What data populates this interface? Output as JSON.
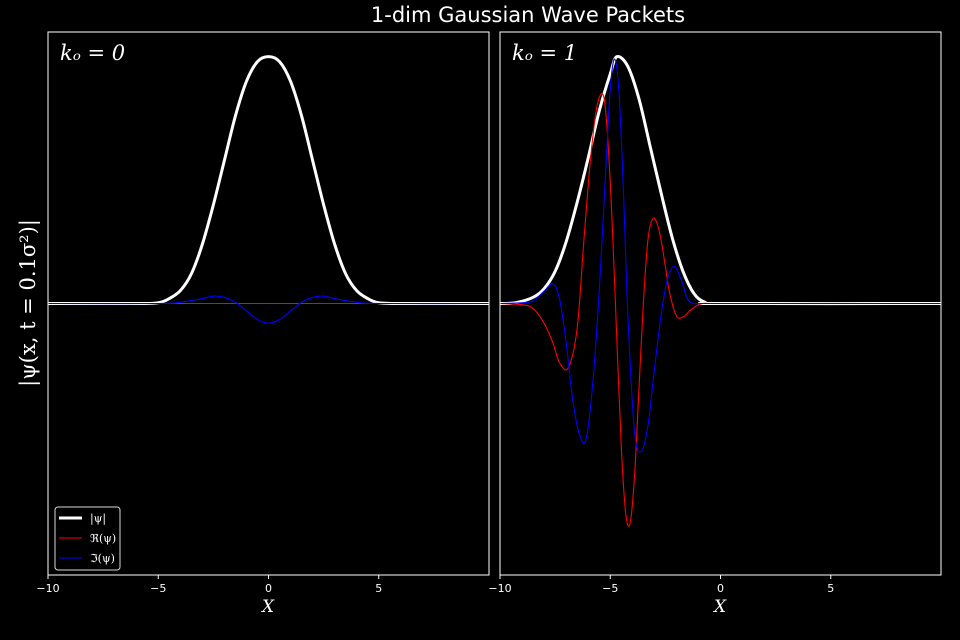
{
  "chart_data": {
    "type": "line",
    "title": "1-dim Gaussian Wave Packets",
    "ylabel": "|ψ(x, t = 0.1σ²)|",
    "xlabel": "X",
    "background": "#000000",
    "colors": {
      "abs": "#ffffff",
      "real": "#ff0000",
      "imag": "#0000ff"
    },
    "legend": {
      "placement": "lower-left",
      "entries": [
        {
          "key": "abs",
          "label": "|ψ|"
        },
        {
          "key": "real",
          "label": "ℜ(ψ)"
        },
        {
          "key": "imag",
          "label": "ℑ(ψ)"
        }
      ]
    },
    "grid": false,
    "panels": [
      {
        "label": "kₒ = 0",
        "xlim": [
          -10,
          10
        ],
        "ylim": [
          -1.1,
          1.1
        ],
        "xticks": [
          -10,
          -5,
          0,
          5
        ],
        "yticks_visible": false,
        "legend": true,
        "series": [
          {
            "key": "abs",
            "name": "|ψ|",
            "x": [
              -10,
              -6,
              -5,
              -4.5,
              -4,
              -3.5,
              -3,
              -2.5,
              -2,
              -1.5,
              -1,
              -0.5,
              0,
              0.5,
              1,
              1.5,
              2,
              2.5,
              3,
              3.5,
              4,
              4.5,
              5,
              6,
              10
            ],
            "y": [
              0,
              0,
              0.003,
              0.02,
              0.052,
              0.12,
              0.24,
              0.4,
              0.58,
              0.76,
              0.9,
              0.98,
              1.0,
              0.98,
              0.9,
              0.76,
              0.58,
              0.4,
              0.24,
              0.12,
              0.052,
              0.02,
              0.003,
              0,
              0
            ]
          },
          {
            "key": "real",
            "name": "ℜ(ψ)",
            "x": [
              -10,
              10
            ],
            "y": [
              0,
              0
            ]
          },
          {
            "key": "imag",
            "name": "ℑ(ψ)",
            "x": [
              -10,
              -5,
              -4,
              -3,
              -2.5,
              -2,
              -1.5,
              -1,
              -0.5,
              0,
              0.5,
              1,
              1.5,
              2,
              2.5,
              3,
              4,
              5,
              10
            ],
            "y": [
              0,
              0,
              0.005,
              0.02,
              0.03,
              0.025,
              0.005,
              -0.03,
              -0.065,
              -0.08,
              -0.065,
              -0.03,
              0.005,
              0.025,
              0.03,
              0.02,
              0.005,
              0,
              0
            ]
          }
        ]
      },
      {
        "label": "kₒ = 1",
        "xlim": [
          -10,
          10
        ],
        "ylim": [
          -1.1,
          1.1
        ],
        "xticks": [
          -10,
          -5,
          0,
          5
        ],
        "yticks_visible": false,
        "legend": false,
        "series": [
          {
            "key": "abs",
            "name": "|ψ|",
            "x": [
              -10,
              -9.3,
              -8.5,
              -8,
              -7.5,
              -7,
              -6.5,
              -6,
              -5.5,
              -5,
              -4.7,
              -4.2,
              -3.7,
              -3.2,
              -2.7,
              -2.2,
              -1.7,
              -1.2,
              -0.7,
              0,
              10
            ],
            "y": [
              0,
              0.003,
              0.025,
              0.06,
              0.13,
              0.25,
              0.41,
              0.59,
              0.78,
              0.93,
              1.0,
              0.96,
              0.83,
              0.64,
              0.45,
              0.27,
              0.13,
              0.04,
              0.005,
              0,
              0
            ]
          },
          {
            "key": "real",
            "name": "ℜ(ψ)",
            "x": [
              -10,
              -9,
              -8.5,
              -8,
              -7.6,
              -7.3,
              -6.9,
              -6.5,
              -6.2,
              -5.9,
              -5.6,
              -5.3,
              -5.1,
              -4.9,
              -4.7,
              -4.5,
              -4.3,
              -4.1,
              -3.9,
              -3.7,
              -3.5,
              -3.3,
              -3.1,
              -2.9,
              -2.7,
              -2.5,
              -2.3,
              -2.0,
              -1.7,
              -1.4,
              -1.1,
              -0.8,
              -0.5,
              0,
              10
            ],
            "y": [
              0,
              -0.005,
              -0.02,
              -0.08,
              -0.16,
              -0.24,
              -0.26,
              -0.1,
              0.25,
              0.58,
              0.8,
              0.84,
              0.65,
              0.3,
              -0.15,
              -0.58,
              -0.85,
              -0.89,
              -0.7,
              -0.35,
              0.0,
              0.25,
              0.34,
              0.33,
              0.26,
              0.15,
              0.04,
              -0.05,
              -0.055,
              -0.03,
              -0.01,
              0,
              0,
              0,
              0
            ]
          },
          {
            "key": "imag",
            "name": "ℑ(ψ)",
            "x": [
              -10,
              -9,
              -8.5,
              -8,
              -7.6,
              -7.3,
              -7.0,
              -6.7,
              -6.4,
              -6.1,
              -5.8,
              -5.5,
              -5.2,
              -5.0,
              -4.8,
              -4.6,
              -4.4,
              -4.2,
              -3.9,
              -3.6,
              -3.3,
              -3.0,
              -2.7,
              -2.4,
              -2.1,
              -1.8,
              -1.5,
              -1.2,
              -0.9,
              -0.5,
              0,
              10
            ],
            "y": [
              0,
              0.003,
              0.01,
              0.05,
              0.08,
              0.02,
              -0.16,
              -0.39,
              -0.53,
              -0.55,
              -0.33,
              0.05,
              0.55,
              0.87,
              0.99,
              0.85,
              0.45,
              -0.05,
              -0.52,
              -0.6,
              -0.5,
              -0.27,
              -0.05,
              0.1,
              0.15,
              0.1,
              0.02,
              0,
              0,
              0,
              0,
              0
            ]
          }
        ]
      }
    ]
  }
}
